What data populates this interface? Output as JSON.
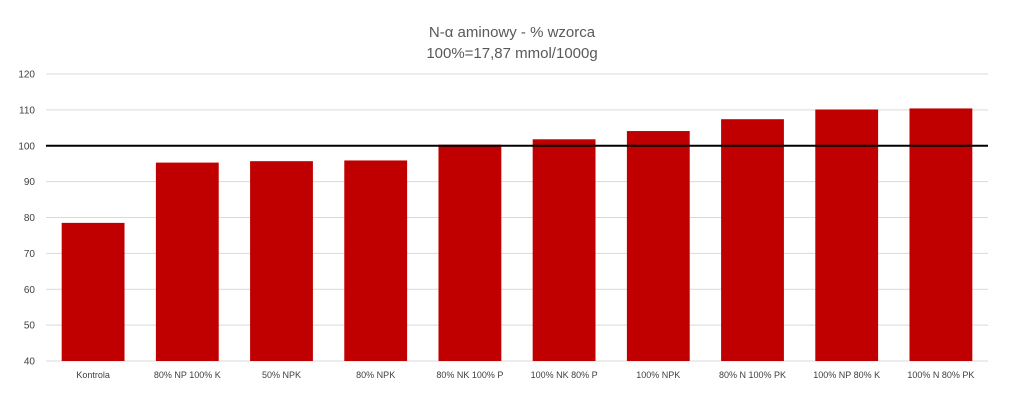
{
  "chart_data": {
    "type": "bar",
    "title": "N-α aminowy - % wzorca",
    "subtitle": "100%=17,87 mmol/1000g",
    "categories": [
      "Kontrola",
      "80% NP 100% K",
      "50% NPK",
      "80% NPK",
      "80% NK 100% P",
      "100% NK 80% P",
      "100% NPK",
      "80% N 100% PK",
      "100% NP 80% K",
      "100% N 80% PK"
    ],
    "values": [
      78.5,
      95.3,
      95.7,
      95.9,
      100.3,
      101.8,
      104.1,
      107.4,
      110.1,
      110.4
    ],
    "ylim": [
      40,
      120
    ],
    "yticks": [
      40,
      50,
      60,
      70,
      80,
      90,
      100,
      110,
      120
    ],
    "ytick_labels": [
      "40",
      "50",
      "60",
      "70",
      "80",
      "90",
      "100",
      "110",
      "120"
    ],
    "reference_line": 100,
    "xlabel": "",
    "ylabel": "",
    "grid": true,
    "legend": "none",
    "bar_color": "#c00000",
    "reference_line_color": "#000000",
    "grid_color": "#d9d9d9"
  }
}
